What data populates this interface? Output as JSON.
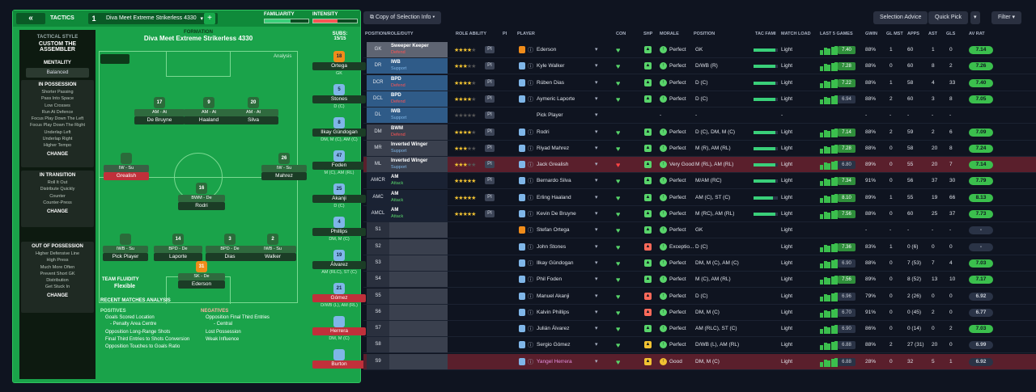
{
  "tactics": {
    "title": "TACTICS",
    "number": "1",
    "name": "Diva Meet Extreme Strikerless 4330",
    "familiarity_label": "FAMILIARITY",
    "familiarity": 0.6,
    "intensity_label": "INTENSITY",
    "intensity": 0.55
  },
  "sidebar": {
    "style_label": "TACTICAL STYLE",
    "style": "CUSTOM THE ASSEMBLER",
    "mentality_label": "MENTALITY",
    "mentality": "Balanced",
    "in_possession": {
      "title": "IN POSSESSION",
      "items": [
        "Shorter Passing",
        "Pass Into Space",
        "Low Crosses",
        "Run At Defence",
        "Focus Play Down The Left",
        "Focus Play Down The Right",
        "Underlap Left",
        "Underlap Right",
        "Higher Tempo"
      ],
      "change": "CHANGE"
    },
    "in_transition": {
      "title": "IN TRANSITION",
      "items": [
        "Roll It Out",
        "Distribute Quickly",
        "Counter",
        "Counter-Press"
      ],
      "change": "CHANGE"
    },
    "out_of_possession": {
      "title": "OUT OF POSSESSION",
      "items": [
        "Higher Defensive Line",
        "High Press",
        "Much More Often",
        "Prevent Short GK",
        "Distribution",
        "Get Stuck In"
      ],
      "change": "CHANGE"
    }
  },
  "formation": {
    "label": "FORMATION",
    "name": "Diva Meet Extreme Strikerless 4330",
    "analysis": "Analysis",
    "fluidity_label": "TEAM FLUIDITY",
    "fluidity": "Flexible"
  },
  "pitch_players": [
    {
      "num": "17",
      "role": "AM - At",
      "name": "De Bruyne"
    },
    {
      "num": "9",
      "role": "AM - At",
      "name": "Haaland"
    },
    {
      "num": "20",
      "role": "AM - At",
      "name": "Silva"
    },
    {
      "num": "",
      "role": "IW - Su",
      "name": "Grealish"
    },
    {
      "num": "26",
      "role": "IW - Su",
      "name": "Mahrez"
    },
    {
      "num": "16",
      "role": "BWM - De",
      "name": "Rodri"
    },
    {
      "num": "",
      "role": "IWB - Su",
      "name": "Pick Player"
    },
    {
      "num": "14",
      "role": "BPD - De",
      "name": "Laporte"
    },
    {
      "num": "3",
      "role": "BPD - De",
      "name": "Dias"
    },
    {
      "num": "2",
      "role": "IWB - Su",
      "name": "Walker"
    },
    {
      "num": "31",
      "role": "SK - De",
      "name": "Ederson"
    }
  ],
  "subs": {
    "label": "SUBS:",
    "count": "15/15",
    "list": [
      {
        "num": "18",
        "name": "Ortega",
        "pos": "GK"
      },
      {
        "num": "5",
        "name": "Stones",
        "pos": "D (C)"
      },
      {
        "num": "8",
        "name": "Ilkay Gündogan",
        "pos": "DM, M (C), AM (C)"
      },
      {
        "num": "47",
        "name": "Foden",
        "pos": "M (C), AM (RL)"
      },
      {
        "num": "25",
        "name": "Akanji",
        "pos": "D (C)"
      },
      {
        "num": "4",
        "name": "Phillips",
        "pos": "DM, M (C)"
      },
      {
        "num": "19",
        "name": "Álvarez",
        "pos": "AM (RLC), ST (C)"
      },
      {
        "num": "21",
        "name": "Gómez",
        "pos": "D/WB (L), AM (RL)"
      },
      {
        "num": "",
        "name": "Herrera",
        "pos": "DM, M (C)"
      },
      {
        "num": "",
        "name": "Burton",
        "pos": ""
      }
    ]
  },
  "analysis": {
    "title": "RECENT MATCHES ANALYSIS",
    "positives_label": "POSITIVES",
    "positives": [
      "Goals Scored Location",
      "- Penalty Area Centre",
      "Opposition Long-Range Shots",
      "Final Third Entries to Shots Conversion",
      "Opposition Touches to Goals Ratio"
    ],
    "negatives_label": "NEGATIVES",
    "negatives": [
      "Opposition Final Third Entries",
      "- Central",
      "Lost Possession",
      "Weak Influence"
    ]
  },
  "right": {
    "copy_btn": "Copy of Selection Info",
    "advice_btn": "Selection Advice",
    "quick_pick": "Quick Pick",
    "filter": "Filter"
  },
  "columns": [
    "POSITION/ROLE/DUTY",
    "ROLE ABILITY",
    "PI",
    "PLAYER",
    "CON",
    "SHP",
    "MORALE",
    "POSITION",
    "TAC FAMI",
    "MATCH LOAD",
    "LAST 5 GAMES",
    "GWIN",
    "GL MST",
    "APPS",
    "AST",
    "GLS",
    "AV RAT"
  ],
  "rows": [
    {
      "pos": "GK",
      "role": "Sweeper Keeper",
      "duty": "Defend",
      "stars": 4,
      "player": "Ederson",
      "morale": "Perfect",
      "position": "GK",
      "tac": 0.9,
      "load": "Light",
      "g5": "7.40",
      "gwin": "88%",
      "glmst": "1",
      "apps": "60",
      "ast": "1",
      "gls": "0",
      "av": "7.14"
    },
    {
      "pos": "DR",
      "role": "IWB",
      "duty": "Support",
      "stars": 3,
      "player": "Kyle Walker",
      "morale": "Perfect",
      "position": "D/WB (R)",
      "tac": 0.9,
      "load": "Light",
      "g5": "7.28",
      "gwin": "88%",
      "glmst": "0",
      "apps": "60",
      "ast": "8",
      "gls": "2",
      "av": "7.26"
    },
    {
      "pos": "DCR",
      "role": "BPD",
      "duty": "Defend",
      "stars": 4,
      "player": "Rúben Dias",
      "morale": "Perfect",
      "position": "D (C)",
      "tac": 0.9,
      "load": "Light",
      "g5": "7.22",
      "gwin": "88%",
      "glmst": "1",
      "apps": "58",
      "ast": "4",
      "gls": "33",
      "av": "7.40"
    },
    {
      "pos": "DCL",
      "role": "BPD",
      "duty": "Defend",
      "stars": 4,
      "player": "Aymeric Laporte",
      "morale": "Perfect",
      "position": "D (C)",
      "tac": 0.9,
      "load": "Light",
      "g5": "6.94",
      "gwin": "88%",
      "glmst": "2",
      "apps": "60",
      "ast": "3",
      "gls": "8",
      "av": "7.05"
    },
    {
      "pos": "DL",
      "role": "IWB",
      "duty": "Support",
      "stars": 0,
      "player": "Pick Player",
      "morale": "-",
      "position": "-",
      "tac": 0,
      "load": "-",
      "g5": "",
      "gwin": "-",
      "glmst": "-",
      "apps": "-",
      "ast": "-",
      "gls": "-",
      "av": ""
    },
    {
      "pos": "DM",
      "role": "BWM",
      "duty": "Defend",
      "stars": 4,
      "player": "Rodri",
      "morale": "Perfect",
      "position": "D (C), DM, M (C)",
      "tac": 0.9,
      "load": "Light",
      "g5": "7.14",
      "gwin": "88%",
      "glmst": "2",
      "apps": "59",
      "ast": "2",
      "gls": "6",
      "av": "7.09"
    },
    {
      "pos": "MR",
      "role": "Inverted Winger",
      "duty": "Support",
      "stars": 3,
      "player": "Riyad Mahrez",
      "morale": "Perfect",
      "position": "M (R), AM (RL)",
      "tac": 0.9,
      "load": "Light",
      "g5": "7.28",
      "gwin": "88%",
      "glmst": "0",
      "apps": "58",
      "ast": "20",
      "gls": "8",
      "av": "7.24"
    },
    {
      "pos": "ML",
      "role": "Inverted Winger",
      "duty": "Support",
      "stars": 3,
      "player": "Jack Grealish",
      "morale": "Very Good",
      "position": "M (RL), AM (RL)",
      "tac": 0.9,
      "load": "Light",
      "g5": "6.80",
      "gwin": "89%",
      "glmst": "0",
      "apps": "55",
      "ast": "20",
      "gls": "7",
      "av": "7.14"
    },
    {
      "pos": "AMCR",
      "role": "AM",
      "duty": "Attack",
      "stars": 5,
      "player": "Bernardo Silva",
      "morale": "Perfect",
      "position": "M/AM (RC)",
      "tac": 0.9,
      "load": "Light",
      "g5": "7.34",
      "gwin": "91%",
      "glmst": "0",
      "apps": "56",
      "ast": "37",
      "gls": "30",
      "av": "7.79"
    },
    {
      "pos": "AMC",
      "role": "AM",
      "duty": "Attack",
      "stars": 5,
      "player": "Erling Haaland",
      "morale": "Perfect",
      "position": "AM (C), ST (C)",
      "tac": 0.8,
      "load": "Light",
      "g5": "8.10",
      "gwin": "89%",
      "glmst": "1",
      "apps": "55",
      "ast": "19",
      "gls": "66",
      "av": "8.13"
    },
    {
      "pos": "AMCL",
      "role": "AM",
      "duty": "Attack",
      "stars": 5,
      "player": "Kevin De Bruyne",
      "morale": "Perfect",
      "position": "M (RC), AM (RL)",
      "tac": 0.9,
      "load": "Light",
      "g5": "7.56",
      "gwin": "88%",
      "glmst": "0",
      "apps": "60",
      "ast": "25",
      "gls": "37",
      "av": "7.73"
    },
    {
      "pos": "S1",
      "role": "",
      "duty": "",
      "stars": -1,
      "player": "Stefan Ortega",
      "morale": "Perfect",
      "position": "GK",
      "tac": 0,
      "load": "Light",
      "g5": "",
      "gwin": "-",
      "glmst": "-",
      "apps": "-",
      "ast": "-",
      "gls": "-",
      "av": "-"
    },
    {
      "pos": "S2",
      "role": "",
      "duty": "",
      "stars": -1,
      "player": "John Stones",
      "morale": "Exceptio...",
      "position": "D (C)",
      "tac": 0,
      "load": "Light",
      "g5": "7.36",
      "gwin": "83%",
      "glmst": "1",
      "apps": "0 (6)",
      "ast": "0",
      "gls": "0",
      "av": "-"
    },
    {
      "pos": "S3",
      "role": "",
      "duty": "",
      "stars": -1,
      "player": "Ilkay Gündogan",
      "morale": "Perfect",
      "position": "DM, M (C), AM (C)",
      "tac": 0,
      "load": "Light",
      "g5": "6.90",
      "gwin": "88%",
      "glmst": "0",
      "apps": "7 (53)",
      "ast": "7",
      "gls": "4",
      "av": "7.03"
    },
    {
      "pos": "S4",
      "role": "",
      "duty": "",
      "stars": -1,
      "player": "Phil Foden",
      "morale": "Perfect",
      "position": "M (C), AM (RL)",
      "tac": 0,
      "load": "Light",
      "g5": "7.56",
      "gwin": "89%",
      "glmst": "0",
      "apps": "8 (52)",
      "ast": "13",
      "gls": "10",
      "av": "7.17"
    },
    {
      "pos": "S5",
      "role": "",
      "duty": "",
      "stars": -1,
      "player": "Manuel Akanji",
      "morale": "Perfect",
      "position": "D (C)",
      "tac": 0,
      "load": "Light",
      "g5": "6.96",
      "gwin": "79%",
      "glmst": "0",
      "apps": "2 (26)",
      "ast": "0",
      "gls": "0",
      "av": "6.92"
    },
    {
      "pos": "S6",
      "role": "",
      "duty": "",
      "stars": -1,
      "player": "Kalvin Phillips",
      "morale": "Perfect",
      "position": "DM, M (C)",
      "tac": 0,
      "load": "Light",
      "g5": "6.70",
      "gwin": "91%",
      "glmst": "0",
      "apps": "0 (45)",
      "ast": "2",
      "gls": "0",
      "av": "6.77"
    },
    {
      "pos": "S7",
      "role": "",
      "duty": "",
      "stars": -1,
      "player": "Julián Álvarez",
      "morale": "Perfect",
      "position": "AM (RLC), ST (C)",
      "tac": 0,
      "load": "Light",
      "g5": "6.90",
      "gwin": "86%",
      "glmst": "0",
      "apps": "0 (14)",
      "ast": "0",
      "gls": "2",
      "av": "7.03"
    },
    {
      "pos": "S8",
      "role": "",
      "duty": "",
      "stars": -1,
      "player": "Sergio Gómez",
      "morale": "Perfect",
      "position": "D/WB (L), AM (RL)",
      "tac": 0,
      "load": "Light",
      "g5": "6.88",
      "gwin": "88%",
      "glmst": "2",
      "apps": "27 (31)",
      "ast": "20",
      "gls": "0",
      "av": "6.99"
    },
    {
      "pos": "S9",
      "role": "",
      "duty": "",
      "stars": -1,
      "player": "Yangel Herrera",
      "morale": "Good",
      "position": "DM, M (C)",
      "tac": 0,
      "load": "Light",
      "g5": "6.88",
      "gwin": "28%",
      "glmst": "0",
      "apps": "32",
      "ast": "5",
      "gls": "1",
      "av": "6.92"
    }
  ],
  "colors": {
    "accent": "#1aa34a",
    "header": "#0f8a3a",
    "selected_row": "#5a1f2c",
    "defend": "#ff5454",
    "support": "#7fb6e8",
    "attack": "#58d46a"
  }
}
